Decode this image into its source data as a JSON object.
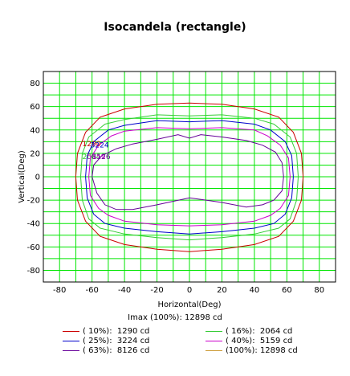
{
  "chart_data": {
    "type": "line",
    "title": "Isocandela (rectangle)",
    "xlabel": "Horizontal(Deg)",
    "ylabel": "Vertical(Deg)",
    "xlim": [
      -90,
      90
    ],
    "ylim": [
      -90,
      90
    ],
    "x_ticks": [
      -80,
      -60,
      -40,
      -20,
      0,
      20,
      40,
      60,
      80
    ],
    "y_ticks": [
      80,
      60,
      40,
      20,
      0,
      -20,
      -40,
      -60,
      -80
    ],
    "grid": true,
    "grid_color": "#00e600",
    "imax_label": "Imax (100%): 12898 cd",
    "annotations": [
      {
        "text": "1290",
        "color": "#cc0000",
        "x": -66,
        "y": 26
      },
      {
        "text": "3224",
        "color": "#0000cc",
        "x": -61,
        "y": 25
      },
      {
        "text": "2064",
        "color": "#33cc33",
        "x": -66,
        "y": 15
      },
      {
        "text": "5159",
        "color": "#cc00cc",
        "x": -63,
        "y": 15
      },
      {
        "text": "8126",
        "color": "#660099",
        "x": -60,
        "y": 15
      }
    ],
    "series": [
      {
        "name": "( 10%):  1290 cd",
        "label": "( 10%):",
        "value": "1290 cd",
        "color": "#cc0000",
        "points": [
          [
            -70,
            0
          ],
          [
            -69,
            20
          ],
          [
            -64,
            38
          ],
          [
            -55,
            51
          ],
          [
            -40,
            58
          ],
          [
            -20,
            62
          ],
          [
            0,
            63
          ],
          [
            20,
            62
          ],
          [
            40,
            58
          ],
          [
            55,
            51
          ],
          [
            64,
            38
          ],
          [
            69,
            20
          ],
          [
            70,
            0
          ],
          [
            69,
            -20
          ],
          [
            64,
            -38
          ],
          [
            55,
            -51
          ],
          [
            40,
            -58
          ],
          [
            20,
            -62
          ],
          [
            0,
            -64
          ],
          [
            -20,
            -62
          ],
          [
            -40,
            -58
          ],
          [
            -55,
            -51
          ],
          [
            -64,
            -38
          ],
          [
            -69,
            -20
          ],
          [
            -70,
            0
          ]
        ]
      },
      {
        "name": "( 16%):  2064 cd",
        "label": "( 16%):",
        "value": "2064 cd",
        "color": "#33cc33",
        "points": [
          [
            -67,
            0
          ],
          [
            -66,
            20
          ],
          [
            -62,
            34
          ],
          [
            -52,
            45
          ],
          [
            -40,
            49
          ],
          [
            -20,
            53
          ],
          [
            0,
            52
          ],
          [
            20,
            53
          ],
          [
            40,
            50
          ],
          [
            52,
            45
          ],
          [
            62,
            34
          ],
          [
            66,
            20
          ],
          [
            67,
            0
          ],
          [
            66,
            -20
          ],
          [
            62,
            -36
          ],
          [
            55,
            -44
          ],
          [
            40,
            -49
          ],
          [
            20,
            -52
          ],
          [
            0,
            -54
          ],
          [
            -20,
            -52
          ],
          [
            -40,
            -49
          ],
          [
            -55,
            -44
          ],
          [
            -62,
            -36
          ],
          [
            -66,
            -20
          ],
          [
            -67,
            0
          ]
        ]
      },
      {
        "name": "( 25%):  3224 cd",
        "label": "( 25%):",
        "value": "3224 cd",
        "color": "#0000cc",
        "points": [
          [
            -64,
            0
          ],
          [
            -63,
            18
          ],
          [
            -59,
            30
          ],
          [
            -50,
            40
          ],
          [
            -40,
            44
          ],
          [
            -20,
            48
          ],
          [
            0,
            47
          ],
          [
            20,
            48
          ],
          [
            40,
            45
          ],
          [
            50,
            40
          ],
          [
            59,
            30
          ],
          [
            63,
            18
          ],
          [
            64,
            0
          ],
          [
            63,
            -18
          ],
          [
            59,
            -32
          ],
          [
            52,
            -40
          ],
          [
            40,
            -44
          ],
          [
            20,
            -47
          ],
          [
            0,
            -49
          ],
          [
            -20,
            -47
          ],
          [
            -40,
            -44
          ],
          [
            -52,
            -40
          ],
          [
            -59,
            -32
          ],
          [
            -63,
            -18
          ],
          [
            -64,
            0
          ]
        ]
      },
      {
        "name": "( 40%):  5159 cd",
        "label": "( 40%):",
        "value": "5159 cd",
        "color": "#cc00cc",
        "points": [
          [
            -62,
            0
          ],
          [
            -61,
            16
          ],
          [
            -56,
            27
          ],
          [
            -48,
            35
          ],
          [
            -40,
            39
          ],
          [
            -20,
            42
          ],
          [
            0,
            41
          ],
          [
            20,
            42
          ],
          [
            40,
            40
          ],
          [
            48,
            35
          ],
          [
            56,
            27
          ],
          [
            61,
            16
          ],
          [
            62,
            0
          ],
          [
            61,
            -16
          ],
          [
            56,
            -27
          ],
          [
            50,
            -33
          ],
          [
            40,
            -38
          ],
          [
            20,
            -41
          ],
          [
            0,
            -42
          ],
          [
            -20,
            -41
          ],
          [
            -40,
            -38
          ],
          [
            -50,
            -33
          ],
          [
            -56,
            -27
          ],
          [
            -61,
            -16
          ],
          [
            -62,
            0
          ]
        ]
      },
      {
        "name": "( 63%):  8126 cd",
        "label": "( 63%):",
        "value": "8126 cd",
        "color": "#660099",
        "points": [
          [
            -60,
            0
          ],
          [
            -59,
            10
          ],
          [
            -54,
            18
          ],
          [
            -45,
            24
          ],
          [
            -35,
            28
          ],
          [
            -20,
            32
          ],
          [
            -7,
            36
          ],
          [
            0,
            33
          ],
          [
            7,
            36
          ],
          [
            20,
            34
          ],
          [
            35,
            31
          ],
          [
            45,
            27
          ],
          [
            53,
            21
          ],
          [
            57,
            12
          ],
          [
            58,
            0
          ],
          [
            57,
            -12
          ],
          [
            52,
            -20
          ],
          [
            45,
            -24
          ],
          [
            35,
            -26
          ],
          [
            20,
            -22
          ],
          [
            0,
            -18
          ],
          [
            -20,
            -24
          ],
          [
            -35,
            -28
          ],
          [
            -45,
            -28
          ],
          [
            -52,
            -24
          ],
          [
            -57,
            -14
          ],
          [
            -60,
            0
          ]
        ]
      },
      {
        "name": "(100%): 12898 cd",
        "label": "(100%):",
        "value": "12898 cd",
        "color": "#cc9933",
        "points": []
      }
    ]
  }
}
